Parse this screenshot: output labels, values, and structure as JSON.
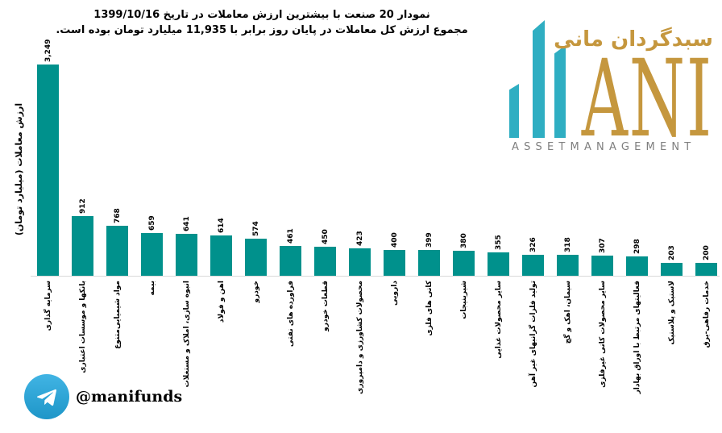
{
  "title": {
    "line1": "نمودار  20 صنعت با بیشترین ارزش معاملات در تاریخ 1399/10/16",
    "line2": "مجموع ارزش  کل معاملات در پایان روز برابر با 11,935 میلیارد تومان بوده است."
  },
  "chart_data": {
    "type": "bar",
    "title": "نمودار 20 صنعت با بیشترین ارزش معاملات در تاریخ 1399/10/16",
    "subtitle": "مجموع ارزش کل معاملات در پایان روز برابر با 11,935 میلیارد تومان بوده است.",
    "ylabel": "ارزش معاملات (میلیارد تومان)",
    "xlabel": "",
    "ylim": [
      0,
      3249
    ],
    "grid": false,
    "legend": "none",
    "total_value_billion_toman": "11,935",
    "date": "1399/10/16",
    "categories": [
      "سرمایه گذاری",
      "بانکها و موسسات اعتباری",
      "مواد شیمیایی‌متنوع",
      "بیمه",
      "انبوه سازی، املاک و مستغلات",
      "اهن و فولاد",
      "خودرو",
      "فراورده های نفتی",
      "قطعات خودرو",
      "محصولات کشاورزی و دامپروری",
      "دارویی",
      "کانی های فلزی",
      "شیرینیجات",
      "سایر محصولات غذایی",
      "تولید فلزات گرانبهای غیر آهن",
      "سیمان، اهک و گچ",
      "سایر محصولات کانی غیرفلزی",
      "فعالیتهای مرتبط با اوراق بهادار",
      "لاستیک و پلاستیک",
      "خدمات رفاهی-برق"
    ],
    "values": [
      3249,
      912,
      768,
      659,
      641,
      614,
      574,
      461,
      450,
      423,
      400,
      399,
      380,
      355,
      326,
      318,
      307,
      298,
      203,
      200
    ],
    "value_labels": [
      "3,249",
      "912",
      "768",
      "659",
      "641",
      "614",
      "574",
      "461",
      "450",
      "423",
      "400",
      "399",
      "380",
      "355",
      "326",
      "318",
      "307",
      "298",
      "203",
      "200"
    ],
    "bar_color": "#00918C",
    "axis_color": "#D9D9D9",
    "label_color": "#000000"
  },
  "logo": {
    "persian_name": "سبدگردان مانی",
    "latin_name": "ANI",
    "subtitle": "ASSETMANAGEMENT",
    "gold_color": "#C5973E",
    "teal_color": "#2FAEC2",
    "gray_color": "#7F7F7F"
  },
  "footer": {
    "telegram_handle": "@manifunds",
    "telegram_blue": "#2CA5E0"
  }
}
